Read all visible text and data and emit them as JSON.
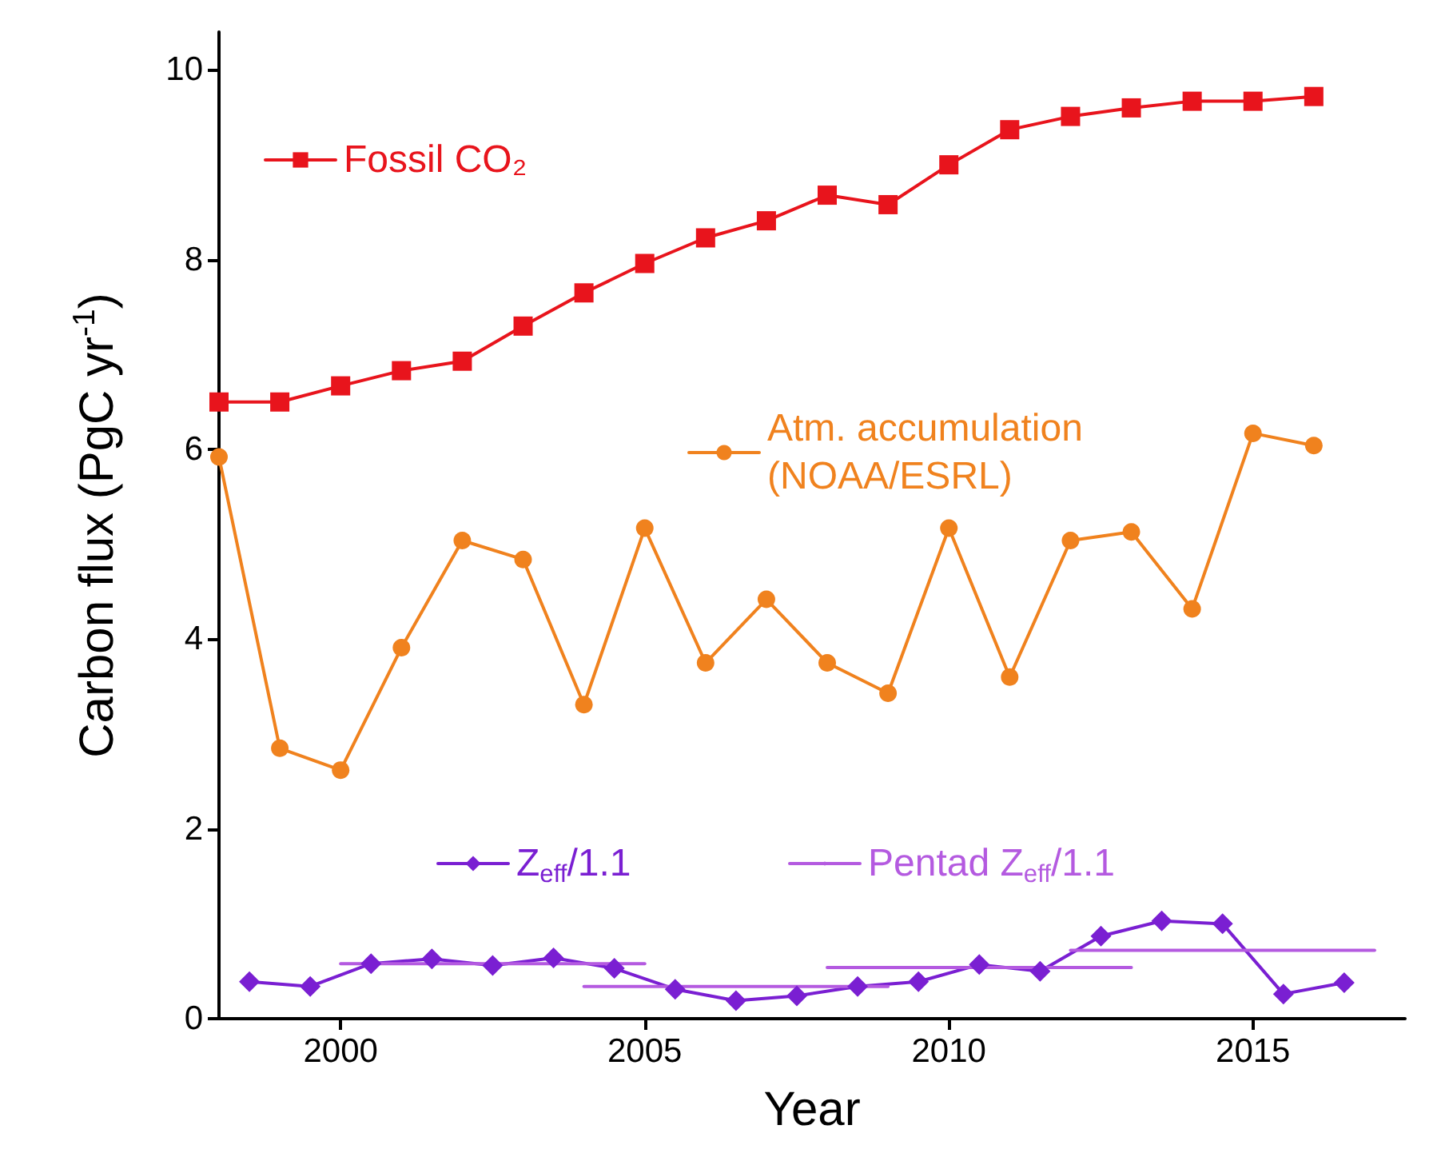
{
  "chart_data": {
    "type": "line",
    "xlabel": "Year",
    "ylabel": "Carbon flux (PgC yr$^{-1}$)",
    "xlim": [
      1998,
      2017.5
    ],
    "xticks": [
      2000,
      2005,
      2010,
      2015
    ],
    "ylim": [
      0,
      10.4
    ],
    "yticks": [
      0,
      2,
      4,
      6,
      8,
      10
    ],
    "grid": false,
    "legend": "top left",
    "series": [
      {
        "name": "Fossil CO₂",
        "color": "#e8141c",
        "marker": "square",
        "x": [
          1998,
          1999,
          2000,
          2001,
          2002,
          2003,
          2004,
          2005,
          2006,
          2007,
          2008,
          2009,
          2010,
          2011,
          2012,
          2013,
          2014,
          2015,
          2016
        ],
        "values": [
          6.5,
          6.5,
          6.67,
          6.83,
          6.93,
          7.3,
          7.65,
          7.96,
          8.23,
          8.41,
          8.68,
          8.58,
          9.0,
          9.37,
          9.51,
          9.6,
          9.67,
          9.67,
          9.72
        ]
      },
      {
        "name": "Atm. accumulation\n(NOAA/ESRL)",
        "color": "#f0821e",
        "marker": "circle",
        "x": [
          1998,
          1999,
          2000,
          2001,
          2002,
          2003,
          2004,
          2005,
          2006,
          2007,
          2008,
          2009,
          2010,
          2011,
          2012,
          2013,
          2014,
          2015,
          2016
        ],
        "values": [
          5.92,
          2.85,
          2.62,
          3.91,
          5.04,
          4.84,
          3.31,
          5.17,
          3.75,
          4.42,
          3.75,
          3.43,
          5.17,
          3.6,
          5.04,
          5.13,
          4.32,
          6.17,
          6.04
        ]
      },
      {
        "name": "Z$_{eff}$/1.1",
        "color": "#7a1fd2",
        "marker": "diamond",
        "x": [
          1998.5,
          1999.5,
          2000.5,
          2001.5,
          2002.5,
          2003.5,
          2004.5,
          2005.5,
          2006.5,
          2007.5,
          2008.5,
          2009.5,
          2010.5,
          2011.5,
          2012.5,
          2013.5,
          2014.5,
          2015.5,
          2016.5
        ],
        "values": [
          0.39,
          0.34,
          0.58,
          0.63,
          0.56,
          0.64,
          0.53,
          0.31,
          0.19,
          0.24,
          0.34,
          0.39,
          0.57,
          0.5,
          0.87,
          1.03,
          1.0,
          0.26,
          0.38
        ]
      },
      {
        "name": "Pentad Z$_{eff}$/1.1",
        "color": "#b45ae0",
        "marker": "none",
        "x": [
          2000,
          2005
        ],
        "values": [
          0.58,
          0.58
        ]
      },
      {
        "color": "#b45ae0",
        "marker": "none",
        "x": [
          2004,
          2009
        ],
        "values": [
          0.34,
          0.34
        ]
      },
      {
        "color": "#b45ae0",
        "marker": "none",
        "x": [
          2008,
          2013
        ],
        "values": [
          0.54,
          0.54
        ]
      },
      {
        "color": "#b45ae0",
        "marker": "none",
        "x": [
          2012,
          2017
        ],
        "values": [
          0.72,
          0.72
        ]
      }
    ]
  }
}
